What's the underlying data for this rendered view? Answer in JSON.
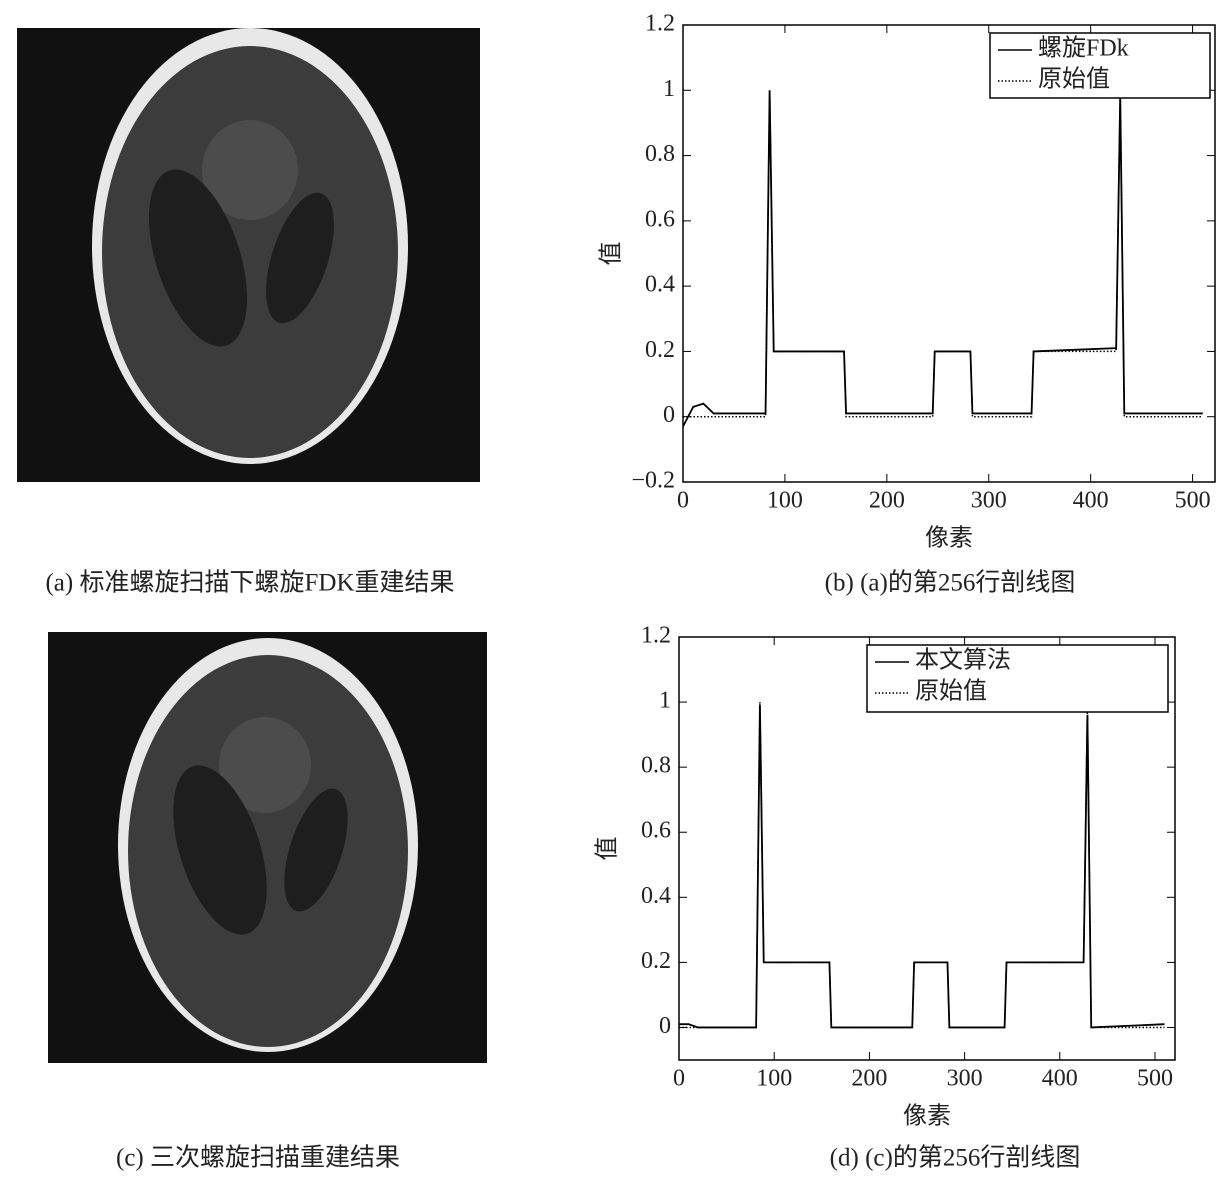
{
  "captions": [
    "(a) 标准螺旋扫描下螺旋FDK重建结果",
    "(b) (a)的第256行剖线图",
    "(c) 三次螺旋扫描重建结果",
    "(d) (c)的第256行剖线图"
  ],
  "chart_data": [
    {
      "type": "line",
      "xlabel": "像素",
      "ylabel": "值",
      "legend": "upper right",
      "grid": false,
      "x": [
        0,
        10,
        20,
        30,
        81,
        85,
        89,
        158,
        160,
        245,
        247,
        282,
        284,
        342,
        344,
        425,
        429,
        433,
        510
      ],
      "series": [
        {
          "name": "螺旋FDk",
          "color": "#000000",
          "style": "solid",
          "values": [
            -0.03,
            0.03,
            0.04,
            0.01,
            0.01,
            1,
            0.2,
            0.2,
            0.01,
            0.01,
            0.2,
            0.2,
            0.01,
            0.01,
            0.2,
            0.21,
            0.98,
            0.01,
            0.01
          ]
        },
        {
          "name": "原始值",
          "color": "#000000",
          "style": "dotted",
          "values": [
            0,
            0,
            0,
            0,
            0,
            1,
            0.2,
            0.2,
            0,
            0,
            0.2,
            0.2,
            0,
            0,
            0.2,
            0.2,
            1,
            0,
            0
          ]
        }
      ],
      "xlim": [
        0,
        522
      ],
      "xticks": [
        0,
        100,
        200,
        300,
        400,
        500
      ],
      "ylim": [
        -0.2,
        1.2
      ],
      "yticks": [
        {
          "value": -0.2,
          "label": "−0.2"
        },
        0,
        0.2,
        0.4,
        0.6,
        0.8,
        1,
        1.2
      ]
    },
    {
      "type": "line",
      "xlabel": "像素",
      "ylabel": "值",
      "legend": "upper right",
      "grid": false,
      "x": [
        0,
        10,
        20,
        30,
        81,
        85,
        89,
        158,
        160,
        245,
        247,
        282,
        284,
        342,
        344,
        425,
        429,
        433,
        510
      ],
      "series": [
        {
          "name": "本文算法",
          "color": "#000000",
          "style": "solid",
          "values": [
            0.01,
            0.01,
            0,
            0,
            0,
            0.99,
            0.2,
            0.2,
            0,
            0,
            0.2,
            0.2,
            0,
            0,
            0.2,
            0.2,
            0.96,
            0,
            0.01
          ]
        },
        {
          "name": "原始值",
          "color": "#000000",
          "style": "dotted",
          "values": [
            0,
            0,
            0,
            0,
            0,
            1,
            0.2,
            0.2,
            0,
            0,
            0.2,
            0.2,
            0,
            0,
            0.2,
            0.2,
            1,
            0,
            0
          ]
        }
      ],
      "xlim": [
        0,
        521
      ],
      "xticks": [
        0,
        100,
        200,
        300,
        400,
        500
      ],
      "ylim": [
        -0.1,
        1.2
      ],
      "yticks": [
        0,
        0.2,
        0.4,
        0.6,
        0.8,
        1,
        1.2
      ]
    }
  ]
}
